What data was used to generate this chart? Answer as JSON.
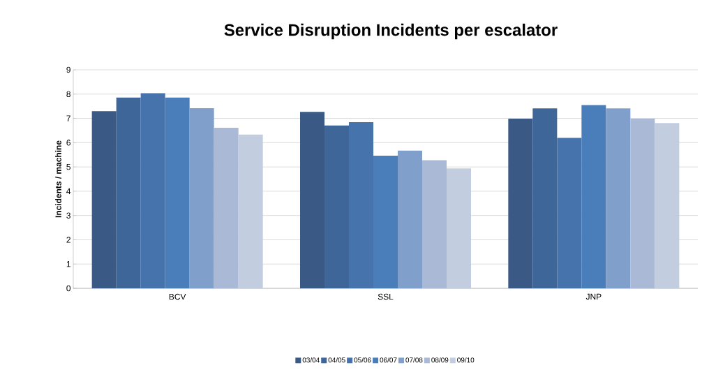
{
  "chart_data": {
    "type": "bar",
    "title": "Service Disruption Incidents per escalator",
    "ylabel": "Incidents / machine",
    "categories": [
      "BCV",
      "SSL",
      "JNP"
    ],
    "series": [
      {
        "name": "03/04",
        "color": "#3a5a85",
        "values": [
          7.3,
          7.27,
          6.99
        ]
      },
      {
        "name": "04/05",
        "color": "#3e6699",
        "values": [
          7.86,
          6.71,
          7.41
        ]
      },
      {
        "name": "05/06",
        "color": "#4673ab",
        "values": [
          8.04,
          6.84,
          6.2
        ]
      },
      {
        "name": "06/07",
        "color": "#4a7ebb",
        "values": [
          7.86,
          5.46,
          7.55
        ]
      },
      {
        "name": "07/08",
        "color": "#809fcb",
        "values": [
          7.42,
          5.67,
          7.41
        ]
      },
      {
        "name": "08/09",
        "color": "#a9b9d6",
        "values": [
          6.61,
          5.28,
          6.99
        ]
      },
      {
        "name": "09/10",
        "color": "#c3cde0",
        "values": [
          6.33,
          4.94,
          6.81
        ]
      }
    ],
    "ylim": [
      0,
      9
    ],
    "yticks": [
      0,
      1,
      2,
      3,
      4,
      5,
      6,
      7,
      8,
      9
    ],
    "grid": "y",
    "legend": "bottom"
  }
}
